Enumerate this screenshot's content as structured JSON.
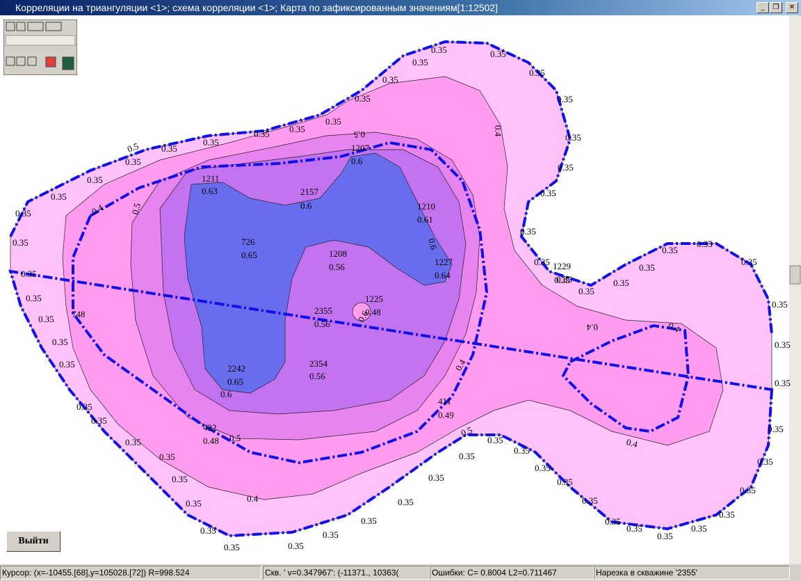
{
  "window": {
    "title": "Корреляции на триангуляции <1>; схема корреляции <1>; Карта по зафиксированным значениям[1:12502]"
  },
  "map": {
    "contour_levels": [
      0.35,
      0.4,
      0.5,
      0.6
    ],
    "wells": [
      {
        "name": "1207",
        "value": 0.6
      },
      {
        "name": "1211",
        "value": 0.63
      },
      {
        "name": "2157",
        "value": 0.6
      },
      {
        "name": "1210",
        "value": 0.61
      },
      {
        "name": "726",
        "value": 0.65
      },
      {
        "name": "1208",
        "value": 0.56
      },
      {
        "name": "1227",
        "value": 0.64
      },
      {
        "name": "1225",
        "value": 0.48
      },
      {
        "name": "2355",
        "value": 0.56
      },
      {
        "name": "2242",
        "value": 0.65
      },
      {
        "name": "2354",
        "value": 0.56
      },
      {
        "name": "411",
        "value": 0.49
      },
      {
        "name": "432",
        "value": 0.48
      },
      {
        "name": "1229",
        "value": 0.35
      },
      {
        "name": "748"
      }
    ]
  },
  "button": {
    "exit": "Выйти"
  },
  "status": [
    "Курсор: (x=-10455.[68],y=105028.[72]) R=998.524",
    "Скв. ' v=0.347967': (-11371., 10363(",
    "Ошибки: C=  0.8004 L2=0.711467",
    "Нарезка в скважине '2355'"
  ]
}
